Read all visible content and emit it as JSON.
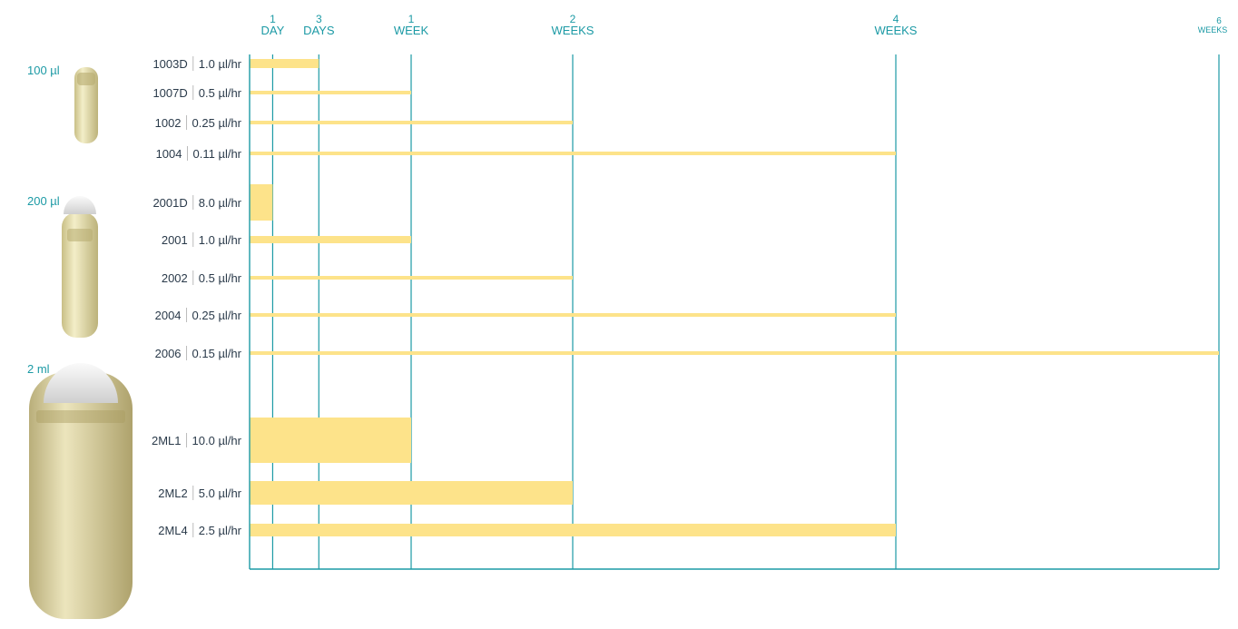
{
  "chart_data": {
    "type": "bar",
    "title": "",
    "xlabel": "",
    "ylabel": "",
    "x_unit": "days",
    "xlim": [
      0,
      42
    ],
    "x_ticks": [
      {
        "value": 1,
        "label_top": "1",
        "label_bottom": "DAY"
      },
      {
        "value": 3,
        "label_top": "3",
        "label_bottom": "DAYS"
      },
      {
        "value": 7,
        "label_top": "1",
        "label_bottom": "WEEK"
      },
      {
        "value": 14,
        "label_top": "2",
        "label_bottom": "WEEKS"
      },
      {
        "value": 28,
        "label_top": "4",
        "label_bottom": "WEEKS"
      },
      {
        "value": 42,
        "label_top": "6",
        "label_bottom": "WEEKS"
      }
    ],
    "groups": [
      {
        "size_label": "100 µl",
        "rows": [
          {
            "model": "1003D",
            "rate": "1.0 µl/hr",
            "duration_days": 3,
            "rate_value": 1.0
          },
          {
            "model": "1007D",
            "rate": "0.5 µl/hr",
            "duration_days": 7,
            "rate_value": 0.5
          },
          {
            "model": "1002",
            "rate": "0.25 µl/hr",
            "duration_days": 14,
            "rate_value": 0.25
          },
          {
            "model": "1004",
            "rate": "0.11 µl/hr",
            "duration_days": 28,
            "rate_value": 0.11
          }
        ]
      },
      {
        "size_label": "200 µl",
        "rows": [
          {
            "model": "2001D",
            "rate": "8.0 µl/hr",
            "duration_days": 1,
            "rate_value": 8.0
          },
          {
            "model": "2001",
            "rate": "1.0 µl/hr",
            "duration_days": 7,
            "rate_value": 1.0
          },
          {
            "model": "2002",
            "rate": "0.5 µl/hr",
            "duration_days": 14,
            "rate_value": 0.5
          },
          {
            "model": "2004",
            "rate": "0.25 µl/hr",
            "duration_days": 28,
            "rate_value": 0.25
          },
          {
            "model": "2006",
            "rate": "0.15 µl/hr",
            "duration_days": 42,
            "rate_value": 0.15
          }
        ]
      },
      {
        "size_label": "2 ml",
        "rows": [
          {
            "model": "2ML1",
            "rate": "10.0 µl/hr",
            "duration_days": 7,
            "rate_value": 10.0
          },
          {
            "model": "2ML2",
            "rate": "5.0 µl/hr",
            "duration_days": 14,
            "rate_value": 5.0
          },
          {
            "model": "2ML4",
            "rate": "2.5 µl/hr",
            "duration_days": 28,
            "rate_value": 2.5
          }
        ]
      }
    ],
    "grid": true,
    "legend": "none"
  },
  "colors": {
    "bar": "#fde38a",
    "axis": "#1c9aa5",
    "label_text": "#2a3a4a",
    "size_text": "#1c9aa5",
    "separator": "#bbbbbb",
    "pump_body": "#e7dfae",
    "pump_body_large": "#d9cf9a",
    "pump_cap": "#eeeeee"
  },
  "icons": {
    "group_images": [
      "pump-100ul-icon",
      "pump-200ul-icon",
      "pump-2ml-icon"
    ]
  }
}
